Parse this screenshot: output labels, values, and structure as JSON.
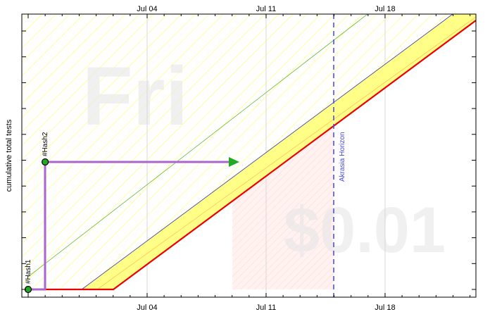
{
  "chart_data": {
    "type": "line",
    "title": "",
    "xlabel": "",
    "ylabel": "cumulative total tests",
    "x_ticks": [
      "Jul 04",
      "Jul 11",
      "Jul 18"
    ],
    "grid": true,
    "watermarks": {
      "day": "Fri",
      "pledge": "$0.01"
    },
    "akrasia_horizon_label": "Akrasia Horizon",
    "data_points": [
      {
        "label": "#Hash1",
        "x": "Jun 27",
        "y": 0
      },
      {
        "label": "#Hash2",
        "x": "Jun 28",
        "y": 1
      }
    ],
    "colors": {
      "road": "#ee0000",
      "yellow_band": "#ffff88",
      "datapoints_line": "#aa66cc",
      "datapoint_fill": "#22aa22",
      "horizon": "#4444ee",
      "projection_arrow": "#22aa22",
      "green_line": "#66bb33",
      "blue_line": "#3333aa"
    }
  }
}
